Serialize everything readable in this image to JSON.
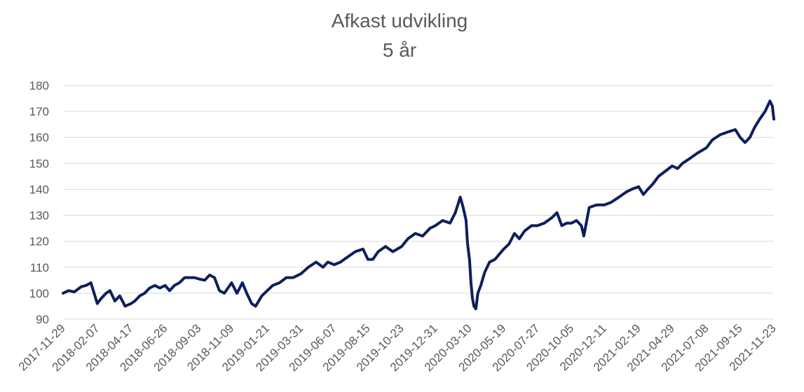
{
  "chart_data": {
    "type": "line",
    "title": "Afkast udvikling",
    "subtitle": "5 år",
    "xlabel": "",
    "ylabel": "",
    "ylim": [
      90,
      180
    ],
    "yticks": [
      90,
      100,
      110,
      120,
      130,
      140,
      150,
      160,
      170,
      180
    ],
    "grid": true,
    "legend": "none",
    "line_color": "#0d1f5c",
    "x_tick_labels": [
      "2017-11-29",
      "2018-02-07",
      "2018-04-17",
      "2018-06-26",
      "2018-09-03",
      "2018-11-09",
      "2019-01-21",
      "2019-03-31",
      "2019-06-07",
      "2019-08-15",
      "2019-10-23",
      "2019-12-31",
      "2020-03-10",
      "2020-05-19",
      "2020-07-27",
      "2020-10-05",
      "2020-12-11",
      "2021-02-19",
      "2021-04-29",
      "2021-07-08",
      "2021-09-15",
      "2021-11-23"
    ],
    "series": [
      {
        "points": [
          [
            "2017-11-29",
            100
          ],
          [
            "2017-12-10",
            101
          ],
          [
            "2017-12-22",
            100.5
          ],
          [
            "2018-01-05",
            102.5
          ],
          [
            "2018-01-15",
            103
          ],
          [
            "2018-01-25",
            104
          ],
          [
            "2018-02-07",
            96
          ],
          [
            "2018-02-15",
            98
          ],
          [
            "2018-02-25",
            100
          ],
          [
            "2018-03-05",
            101
          ],
          [
            "2018-03-15",
            97
          ],
          [
            "2018-03-25",
            99
          ],
          [
            "2018-04-05",
            95
          ],
          [
            "2018-04-17",
            96
          ],
          [
            "2018-04-25",
            97
          ],
          [
            "2018-05-05",
            99
          ],
          [
            "2018-05-15",
            100
          ],
          [
            "2018-05-25",
            102
          ],
          [
            "2018-06-05",
            103
          ],
          [
            "2018-06-15",
            102
          ],
          [
            "2018-06-26",
            103
          ],
          [
            "2018-07-05",
            101
          ],
          [
            "2018-07-15",
            103
          ],
          [
            "2018-07-25",
            104
          ],
          [
            "2018-08-05",
            106
          ],
          [
            "2018-08-15",
            106
          ],
          [
            "2018-08-25",
            106
          ],
          [
            "2018-09-03",
            105.5
          ],
          [
            "2018-09-15",
            105
          ],
          [
            "2018-09-25",
            107
          ],
          [
            "2018-10-05",
            106
          ],
          [
            "2018-10-15",
            101
          ],
          [
            "2018-10-25",
            100
          ],
          [
            "2018-11-09",
            104
          ],
          [
            "2018-11-20",
            100
          ],
          [
            "2018-12-01",
            104
          ],
          [
            "2018-12-10",
            100
          ],
          [
            "2018-12-20",
            96
          ],
          [
            "2018-12-28",
            95
          ],
          [
            "2019-01-10",
            99
          ],
          [
            "2019-01-21",
            101
          ],
          [
            "2019-02-01",
            103
          ],
          [
            "2019-02-15",
            104
          ],
          [
            "2019-03-01",
            106
          ],
          [
            "2019-03-15",
            106
          ],
          [
            "2019-03-31",
            107.5
          ],
          [
            "2019-04-15",
            110
          ],
          [
            "2019-05-01",
            112
          ],
          [
            "2019-05-15",
            110
          ],
          [
            "2019-05-25",
            112
          ],
          [
            "2019-06-07",
            111
          ],
          [
            "2019-06-20",
            112
          ],
          [
            "2019-07-05",
            114
          ],
          [
            "2019-07-20",
            116
          ],
          [
            "2019-08-05",
            117
          ],
          [
            "2019-08-15",
            113
          ],
          [
            "2019-08-25",
            113
          ],
          [
            "2019-09-05",
            116
          ],
          [
            "2019-09-20",
            118
          ],
          [
            "2019-10-05",
            116
          ],
          [
            "2019-10-23",
            118
          ],
          [
            "2019-11-05",
            121
          ],
          [
            "2019-11-20",
            123
          ],
          [
            "2019-12-05",
            122
          ],
          [
            "2019-12-20",
            125
          ],
          [
            "2019-12-31",
            126
          ],
          [
            "2020-01-15",
            128
          ],
          [
            "2020-01-30",
            127
          ],
          [
            "2020-02-10",
            131
          ],
          [
            "2020-02-20",
            137
          ],
          [
            "2020-02-26",
            133
          ],
          [
            "2020-03-03",
            128
          ],
          [
            "2020-03-06",
            119
          ],
          [
            "2020-03-10",
            113
          ],
          [
            "2020-03-13",
            104
          ],
          [
            "2020-03-16",
            98
          ],
          [
            "2020-03-19",
            95
          ],
          [
            "2020-03-23",
            94
          ],
          [
            "2020-03-27",
            100
          ],
          [
            "2020-04-02",
            103
          ],
          [
            "2020-04-10",
            108
          ],
          [
            "2020-04-20",
            112
          ],
          [
            "2020-05-01",
            113
          ],
          [
            "2020-05-10",
            115
          ],
          [
            "2020-05-19",
            117
          ],
          [
            "2020-05-30",
            119
          ],
          [
            "2020-06-10",
            123
          ],
          [
            "2020-06-20",
            121
          ],
          [
            "2020-07-01",
            124
          ],
          [
            "2020-07-15",
            126
          ],
          [
            "2020-07-27",
            126
          ],
          [
            "2020-08-10",
            127
          ],
          [
            "2020-08-25",
            129
          ],
          [
            "2020-09-05",
            131
          ],
          [
            "2020-09-15",
            126
          ],
          [
            "2020-09-25",
            127
          ],
          [
            "2020-10-05",
            127
          ],
          [
            "2020-10-15",
            128
          ],
          [
            "2020-10-25",
            126
          ],
          [
            "2020-10-30",
            122
          ],
          [
            "2020-11-10",
            133
          ],
          [
            "2020-11-25",
            134
          ],
          [
            "2020-12-11",
            134
          ],
          [
            "2020-12-25",
            135
          ],
          [
            "2021-01-10",
            137
          ],
          [
            "2021-01-25",
            139
          ],
          [
            "2021-02-05",
            140
          ],
          [
            "2021-02-19",
            141
          ],
          [
            "2021-03-01",
            138
          ],
          [
            "2021-03-10",
            140
          ],
          [
            "2021-03-20",
            142
          ],
          [
            "2021-04-01",
            145
          ],
          [
            "2021-04-15",
            147
          ],
          [
            "2021-04-29",
            149
          ],
          [
            "2021-05-10",
            148
          ],
          [
            "2021-05-20",
            150
          ],
          [
            "2021-06-05",
            152
          ],
          [
            "2021-06-20",
            154
          ],
          [
            "2021-07-08",
            156
          ],
          [
            "2021-07-20",
            159
          ],
          [
            "2021-08-05",
            161
          ],
          [
            "2021-08-20",
            162
          ],
          [
            "2021-09-05",
            163
          ],
          [
            "2021-09-15",
            160
          ],
          [
            "2021-09-25",
            158
          ],
          [
            "2021-10-05",
            160
          ],
          [
            "2021-10-15",
            164
          ],
          [
            "2021-10-25",
            167
          ],
          [
            "2021-11-05",
            170
          ],
          [
            "2021-11-15",
            174
          ],
          [
            "2021-11-20",
            172
          ],
          [
            "2021-11-23",
            167
          ]
        ]
      }
    ]
  }
}
